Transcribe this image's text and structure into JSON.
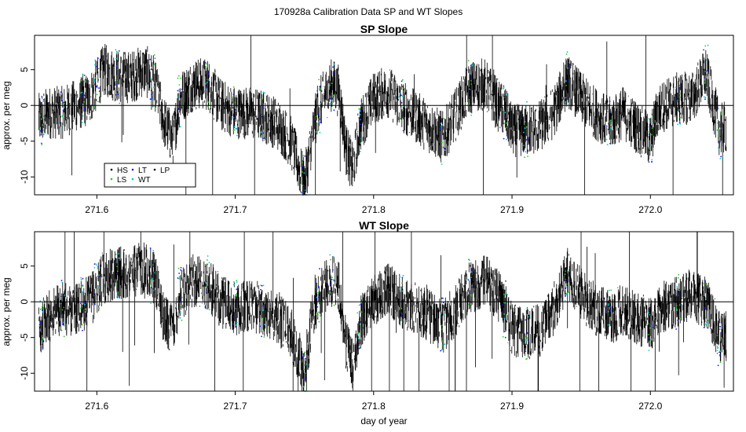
{
  "figure": {
    "title": "170928a   Calibration Data SP and WT Slopes",
    "xlabel": "day of year"
  },
  "legend": {
    "entries": [
      {
        "label": "HS",
        "color": "#000000"
      },
      {
        "label": "LS",
        "color": "#22cc22"
      },
      {
        "label": "LT",
        "color": "#1a1aff"
      },
      {
        "label": "WT",
        "color": "#00cccc"
      },
      {
        "label": "LP",
        "color": "#000000"
      }
    ]
  },
  "chart_data": [
    {
      "type": "line",
      "title": "SP Slope",
      "xlabel": "",
      "ylabel": "approx. per meg",
      "xlim": [
        271.555,
        272.06
      ],
      "ylim": [
        -12.5,
        9.8
      ],
      "xticks": [
        271.6,
        271.7,
        271.8,
        271.9,
        272.0
      ],
      "xtick_labels": [
        "271.6",
        "271.7",
        "271.8",
        "271.9",
        "272.0"
      ],
      "yticks": [
        -10,
        -5,
        0,
        5
      ],
      "ytick_labels": [
        "-10",
        "-5",
        "0",
        "5"
      ],
      "hline": 0,
      "legend_position": "bottom-left",
      "series": [
        {
          "name": "HS",
          "color": "#000000"
        },
        {
          "name": "LS",
          "color": "#22cc22"
        },
        {
          "name": "LT",
          "color": "#1a1aff"
        },
        {
          "name": "WT",
          "color": "#00cccc"
        },
        {
          "name": "LP",
          "color": "#000000"
        }
      ],
      "approx_centerline": {
        "x": [
          271.558,
          271.565,
          271.575,
          271.585,
          271.595,
          271.605,
          271.615,
          271.625,
          271.635,
          271.642,
          271.648,
          271.655,
          271.66,
          271.67,
          271.68,
          271.69,
          271.7,
          271.71,
          271.72,
          271.73,
          271.74,
          271.745,
          271.75,
          271.755,
          271.76,
          271.77,
          271.775,
          271.78,
          271.785,
          271.79,
          271.8,
          271.81,
          271.82,
          271.83,
          271.84,
          271.85,
          271.86,
          271.865,
          271.87,
          271.88,
          271.89,
          271.895,
          271.9,
          271.91,
          271.92,
          271.93,
          271.94,
          271.95,
          271.96,
          271.97,
          271.975,
          271.98,
          271.99,
          272.0,
          272.005,
          272.01,
          272.02,
          272.03,
          272.04,
          272.05,
          272.055
        ],
        "y": [
          -2.0,
          -1.0,
          -1.0,
          0.0,
          1.0,
          5.0,
          4.0,
          4.0,
          5.0,
          3.0,
          -2.0,
          -5.0,
          1.0,
          3.0,
          3.0,
          0.0,
          -1.0,
          -1.0,
          -1.5,
          -2.5,
          -5.0,
          -8.0,
          -11.0,
          -5.0,
          0.0,
          3.0,
          2.0,
          -6.0,
          -9.0,
          -3.0,
          1.0,
          2.0,
          0.0,
          -1.5,
          -3.0,
          -4.5,
          -1.0,
          1.0,
          2.5,
          3.0,
          0.0,
          -1.0,
          -3.5,
          -3.5,
          -3.0,
          -1.0,
          3.5,
          1.0,
          -1.0,
          -2.5,
          -2.0,
          -1.0,
          -3.0,
          -5.0,
          -1.0,
          0.0,
          1.0,
          1.0,
          4.5,
          -3.5,
          -3.0
        ]
      }
    },
    {
      "type": "line",
      "title": "WT Slope",
      "xlabel": "day of year",
      "ylabel": "approx. per meg",
      "xlim": [
        271.555,
        272.06
      ],
      "ylim": [
        -12.5,
        9.8
      ],
      "xticks": [
        271.6,
        271.7,
        271.8,
        271.9,
        272.0
      ],
      "xtick_labels": [
        "271.6",
        "271.7",
        "271.8",
        "271.9",
        "272.0"
      ],
      "yticks": [
        -10,
        -5,
        0,
        5
      ],
      "ytick_labels": [
        "-10",
        "-5",
        "0",
        "5"
      ],
      "hline": 0,
      "series": [
        {
          "name": "HS",
          "color": "#000000"
        },
        {
          "name": "LS",
          "color": "#22cc22"
        },
        {
          "name": "LT",
          "color": "#1a1aff"
        },
        {
          "name": "WT",
          "color": "#00cccc"
        },
        {
          "name": "LP",
          "color": "#000000"
        }
      ],
      "approx_centerline": {
        "x": [
          271.558,
          271.565,
          271.575,
          271.585,
          271.595,
          271.605,
          271.615,
          271.625,
          271.635,
          271.642,
          271.648,
          271.655,
          271.66,
          271.67,
          271.68,
          271.69,
          271.7,
          271.71,
          271.72,
          271.73,
          271.74,
          271.745,
          271.75,
          271.755,
          271.76,
          271.77,
          271.775,
          271.78,
          271.785,
          271.79,
          271.8,
          271.81,
          271.82,
          271.83,
          271.84,
          271.85,
          271.86,
          271.865,
          271.87,
          271.88,
          271.89,
          271.895,
          271.9,
          271.91,
          271.92,
          271.93,
          271.94,
          271.95,
          271.96,
          271.97,
          271.975,
          271.98,
          271.99,
          272.0,
          272.005,
          272.01,
          272.02,
          272.03,
          272.04,
          272.05,
          272.055
        ],
        "y": [
          -4.0,
          -2.0,
          -1.0,
          -1.0,
          0.0,
          3.5,
          4.0,
          4.0,
          5.0,
          3.0,
          -2.0,
          -4.0,
          1.0,
          3.0,
          2.5,
          0.0,
          -1.0,
          -0.5,
          -1.0,
          -2.0,
          -4.0,
          -7.0,
          -10.0,
          -3.0,
          1.0,
          3.0,
          2.0,
          -6.0,
          -9.0,
          -3.0,
          0.0,
          2.0,
          0.0,
          -1.0,
          -2.0,
          -3.5,
          -1.0,
          1.0,
          2.0,
          3.0,
          1.0,
          -1.0,
          -4.0,
          -4.5,
          -4.0,
          -1.0,
          4.0,
          1.0,
          -1.0,
          -2.0,
          -2.0,
          -1.0,
          -2.5,
          -3.0,
          -2.0,
          -0.5,
          0.0,
          1.0,
          0.0,
          -5.0,
          -5.0
        ]
      }
    }
  ]
}
